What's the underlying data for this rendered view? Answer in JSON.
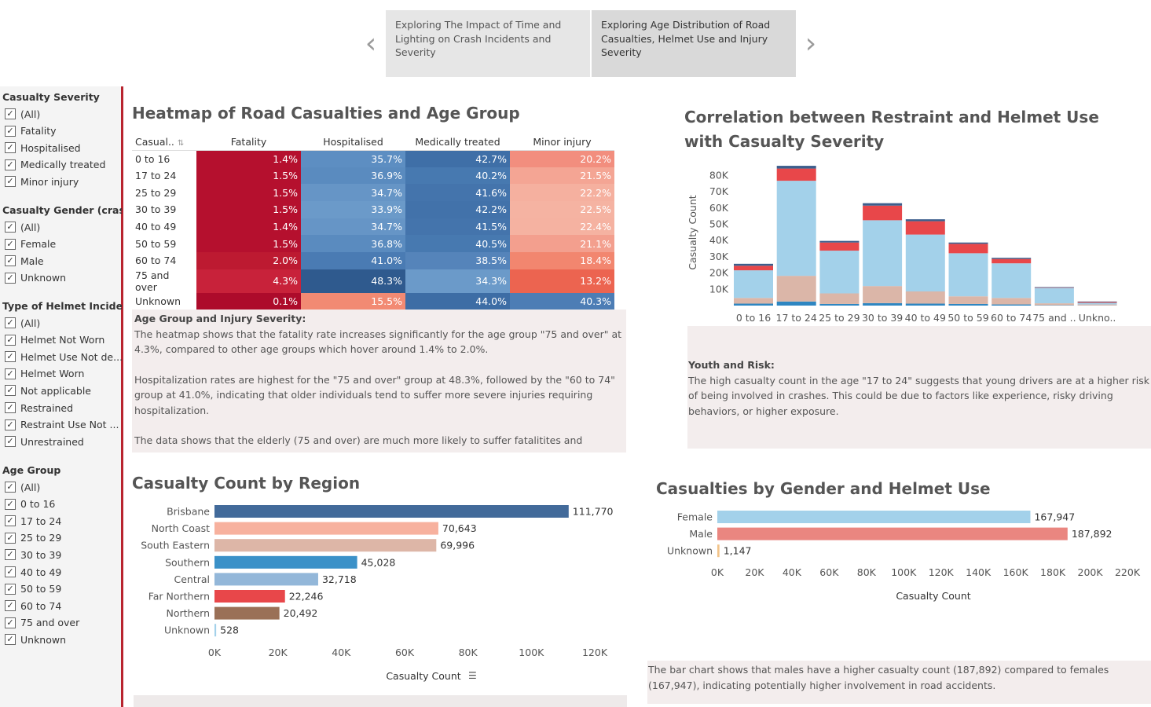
{
  "story": {
    "tabs": [
      {
        "label": "Exploring The Impact of Time and Lighting on Crash Incidents and Severity"
      },
      {
        "label": "Exploring Age Distribution of Road Casualties, Helmet Use and Injury Severity"
      }
    ],
    "prev_arrow": "‹",
    "next_arrow": "›"
  },
  "filters": {
    "severity": {
      "title": "Casualty Severity",
      "items": [
        "(All)",
        "Fatality",
        "Hospitalised",
        "Medically treated",
        "Minor injury"
      ]
    },
    "gender": {
      "title": "Casualty Gender (crash...",
      "items": [
        "(All)",
        "Female",
        "Male",
        "Unknown"
      ]
    },
    "helmet": {
      "title": "Type of Helmet Incidents",
      "items": [
        "(All)",
        "Helmet Not Worn",
        "Helmet Use Not de...",
        "Helmet Worn",
        "Not applicable",
        "Restrained",
        "Restraint Use Not ...",
        "Unrestrained"
      ]
    },
    "age": {
      "title": "Age Group",
      "items": [
        "(All)",
        "0 to 16",
        "17 to 24",
        "25 to 29",
        "30 to 39",
        "40 to 49",
        "50 to 59",
        "60 to 74",
        "75 and over",
        "Unknown"
      ]
    },
    "check_mark": "✓"
  },
  "heatmap": {
    "title": "Heatmap of Road Casualties and Age Group",
    "row_header": "Casual..",
    "sort_icon": "⇅",
    "columns": [
      "Fatality",
      "Hospitalised",
      "Medically treated",
      "Minor injury"
    ],
    "rows": [
      {
        "label": "0 to 16",
        "values": [
          "1.4%",
          "35.7%",
          "42.7%",
          "20.2%"
        ],
        "colors": [
          "#b5102e",
          "#5d8ec2",
          "#3f6fa7",
          "#f28e7e"
        ]
      },
      {
        "label": "17 to 24",
        "values": [
          "1.5%",
          "36.9%",
          "40.2%",
          "21.5%"
        ],
        "colors": [
          "#b5102e",
          "#5a8bbf",
          "#4779b0",
          "#f4a594"
        ]
      },
      {
        "label": "25 to 29",
        "values": [
          "1.5%",
          "34.7%",
          "41.6%",
          "22.2%"
        ],
        "colors": [
          "#b5102e",
          "#6695c6",
          "#4474ac",
          "#f5b09f"
        ]
      },
      {
        "label": "30 to 39",
        "values": [
          "1.5%",
          "33.9%",
          "42.2%",
          "22.5%"
        ],
        "colors": [
          "#b5102e",
          "#6b9ac9",
          "#4272aa",
          "#f5b3a2"
        ]
      },
      {
        "label": "40 to 49",
        "values": [
          "1.4%",
          "34.7%",
          "41.5%",
          "22.4%"
        ],
        "colors": [
          "#b5102e",
          "#6695c6",
          "#4474ac",
          "#f5b2a1"
        ]
      },
      {
        "label": "50 to 59",
        "values": [
          "1.5%",
          "36.8%",
          "40.5%",
          "21.1%"
        ],
        "colors": [
          "#b5102e",
          "#5a8bbf",
          "#4779b0",
          "#f39f8e"
        ]
      },
      {
        "label": "60 to 74",
        "values": [
          "2.0%",
          "41.0%",
          "38.5%",
          "18.4%"
        ],
        "colors": [
          "#bd1a31",
          "#4a7bb3",
          "#5584ba",
          "#f2866f"
        ]
      },
      {
        "label": "75 and over",
        "values": [
          "4.3%",
          "48.3%",
          "34.3%",
          "13.2%"
        ],
        "colors": [
          "#c8223a",
          "#2f5a8e",
          "#6b9ac9",
          "#ec6450"
        ]
      },
      {
        "label": "Unknown",
        "values": [
          "0.1%",
          "15.5%",
          "44.0%",
          "40.3%"
        ],
        "colors": [
          "#ad0b2b",
          "#f28a73",
          "#3d6da5",
          "#4d7db5"
        ]
      }
    ],
    "note_title": "Age Group and Injury Severity:",
    "note_paragraphs": [
      "The heatmap shows that the fatality rate increases significantly for the age group \"75 and over\" at 4.3%, compared to other age groups which hover around 1.4% to 2.0%.",
      "Hospitalization rates are highest for the \"75 and over\" group at 48.3%, followed by the \"60 to 74\" group at 41.0%, indicating that older individuals tend to suffer more severe injuries requiring hospitalization.",
      "The data shows that the elderly (75 and over) are much more likely to suffer fatalitites and"
    ]
  },
  "restraint_chart": {
    "title": "Correlation between Restraint and Helmet Use with Casualty Severity",
    "note_title": "Youth and Risk:",
    "note_text": "The high casualty count in the age \"17 to 24\" suggests that young drivers are at a higher risk of being involved in crashes. This could be due to factors like experience, risky driving behaviors, or higher exposure."
  },
  "region_chart": {
    "title": "Casualty Count by Region",
    "sort_icon": "☰"
  },
  "gender_chart": {
    "title": "Casualties by Gender and Helmet Use",
    "note_text": "The bar chart shows that males have a higher casualty count (187,892) compared to females (167,947), indicating potentially higher involvement in road accidents."
  },
  "chart_data": [
    {
      "type": "bar",
      "stacked": true,
      "ylabel": "Casualty Count",
      "ylim": [
        0,
        87000
      ],
      "yticks": [
        "10K",
        "20K",
        "30K",
        "40K",
        "50K",
        "60K",
        "70K",
        "80K"
      ],
      "ytick_values": [
        10000,
        20000,
        30000,
        40000,
        50000,
        60000,
        70000,
        80000
      ],
      "categories": [
        "0 to 16",
        "17 to 24",
        "25 to 29",
        "30 to 39",
        "40 to 49",
        "50 to 59",
        "60 to 74",
        "75 and ..",
        "Unkno.."
      ],
      "series": [
        {
          "color": "#2e86c1",
          "values": [
            1200,
            2500,
            1000,
            1500,
            1200,
            1000,
            700,
            200,
            100
          ]
        },
        {
          "color": "#dbb6a8",
          "values": [
            3500,
            15800,
            6500,
            10500,
            7500,
            4700,
            4000,
            1200,
            600
          ]
        },
        {
          "color": "#a3d1ea",
          "values": [
            17000,
            58500,
            26300,
            40500,
            35000,
            26500,
            21300,
            9500,
            1000
          ]
        },
        {
          "color": "#e8474a",
          "values": [
            2800,
            7500,
            5000,
            9000,
            8200,
            5800,
            2700,
            200,
            500
          ]
        },
        {
          "color": "#3c5e8c",
          "values": [
            1200,
            1700,
            1000,
            1500,
            1200,
            800,
            700,
            300,
            300
          ]
        }
      ]
    },
    {
      "type": "bar",
      "orientation": "horizontal",
      "xlabel": "Casualty Count",
      "xlim": [
        0,
        120000
      ],
      "xticks": [
        "0K",
        "20K",
        "40K",
        "60K",
        "80K",
        "100K",
        "120K"
      ],
      "xtick_values": [
        0,
        20000,
        40000,
        60000,
        80000,
        100000,
        120000
      ],
      "categories": [
        "Brisbane",
        "North Coast",
        "South Eastern",
        "Southern",
        "Central",
        "Far Northern",
        "Northern",
        "Unknown"
      ],
      "values": [
        111770,
        70643,
        69996,
        45028,
        32718,
        22246,
        20492,
        528
      ],
      "labels": [
        "111,770",
        "70,643",
        "69,996",
        "45,028",
        "32,718",
        "22,246",
        "20,492",
        "528"
      ],
      "colors": [
        "#426a9a",
        "#f7b19e",
        "#ddb6a7",
        "#3b91c8",
        "#93b7d9",
        "#e8474a",
        "#9a7057",
        "#a3d1ea"
      ]
    },
    {
      "type": "bar",
      "orientation": "horizontal",
      "xlabel": "Casualty Count",
      "xlim": [
        0,
        220000
      ],
      "xticks": [
        "0K",
        "20K",
        "40K",
        "60K",
        "80K",
        "100K",
        "120K",
        "140K",
        "160K",
        "180K",
        "200K",
        "220K"
      ],
      "xtick_values": [
        0,
        20000,
        40000,
        60000,
        80000,
        100000,
        120000,
        140000,
        160000,
        180000,
        200000,
        220000
      ],
      "categories": [
        "Female",
        "Male",
        "Unknown"
      ],
      "values": [
        167947,
        187892,
        1147
      ],
      "labels": [
        "167,947",
        "187,892",
        "1,147"
      ],
      "colors": [
        "#a3d1ea",
        "#ea8680",
        "#f2c48a"
      ]
    }
  ]
}
